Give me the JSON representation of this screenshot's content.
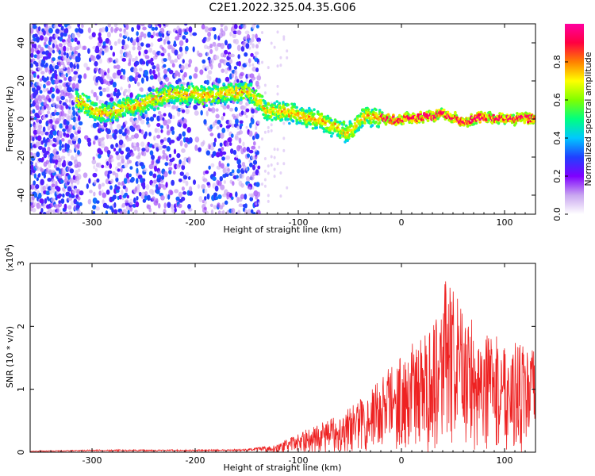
{
  "figure_title": "C2E1.2022.325.04.35.G06",
  "chart_data": [
    {
      "type": "heatmap",
      "title": "C2E1.2022.325.04.35.G06",
      "xlabel": "Height of straight line (km)",
      "ylabel": "Frequency (Hz)",
      "xlim": [
        -360,
        130
      ],
      "ylim": [
        -50,
        50
      ],
      "xticks": [
        -300,
        -200,
        -100,
        0,
        100
      ],
      "yticks": [
        -40,
        -20,
        0,
        20,
        40
      ],
      "colorbar": {
        "label": "Normalized spectral amplitude",
        "range": [
          0.0,
          1.0
        ],
        "ticks": [
          "0.0",
          "0.2",
          "0.4",
          "0.6",
          "0.8"
        ],
        "colors": [
          "#ffffff",
          "#c9a6f0",
          "#7f00ff",
          "#2040ff",
          "#00c8ff",
          "#00ff80",
          "#80ff00",
          "#ffff00",
          "#ff8000",
          "#ff0040",
          "#ff00a0"
        ]
      },
      "ridge": {
        "x": [
          -310,
          -290,
          -270,
          -250,
          -230,
          -210,
          -190,
          -170,
          -150,
          -130,
          -110,
          -90,
          -70,
          -50,
          -35,
          -25,
          -10,
          0,
          20,
          40,
          60,
          80,
          100,
          130
        ],
        "y": [
          9,
          2,
          6,
          8,
          12,
          13,
          12,
          13,
          15,
          5,
          3,
          1,
          -3,
          -7,
          2,
          1,
          0,
          0,
          1,
          3,
          -1,
          1,
          0,
          0
        ]
      }
    },
    {
      "type": "line",
      "xlabel": "Height of straight line (km)",
      "ylabel": "SNR (10 * v/v)",
      "multiplier_label": "(x10",
      "multiplier_exp": "4",
      "multiplier_close": ")",
      "xlim": [
        -360,
        130
      ],
      "ylim": [
        0,
        3
      ],
      "xticks": [
        -300,
        -200,
        -100,
        0,
        100
      ],
      "yticks": [
        0,
        1,
        2,
        3
      ],
      "line_color": "#ee2222",
      "envelope": {
        "x": [
          -360,
          -300,
          -200,
          -150,
          -120,
          -100,
          -80,
          -60,
          -40,
          -20,
          -10,
          0,
          10,
          20,
          30,
          40,
          50,
          60,
          70,
          80,
          90,
          100,
          110,
          120,
          130
        ],
        "y": [
          0.02,
          0.04,
          0.04,
          0.05,
          0.12,
          0.3,
          0.45,
          0.6,
          0.85,
          1.2,
          1.45,
          1.55,
          1.75,
          1.8,
          2.1,
          2.8,
          2.6,
          2.3,
          2.1,
          1.9,
          1.85,
          1.8,
          1.75,
          1.7,
          1.6
        ]
      }
    }
  ]
}
